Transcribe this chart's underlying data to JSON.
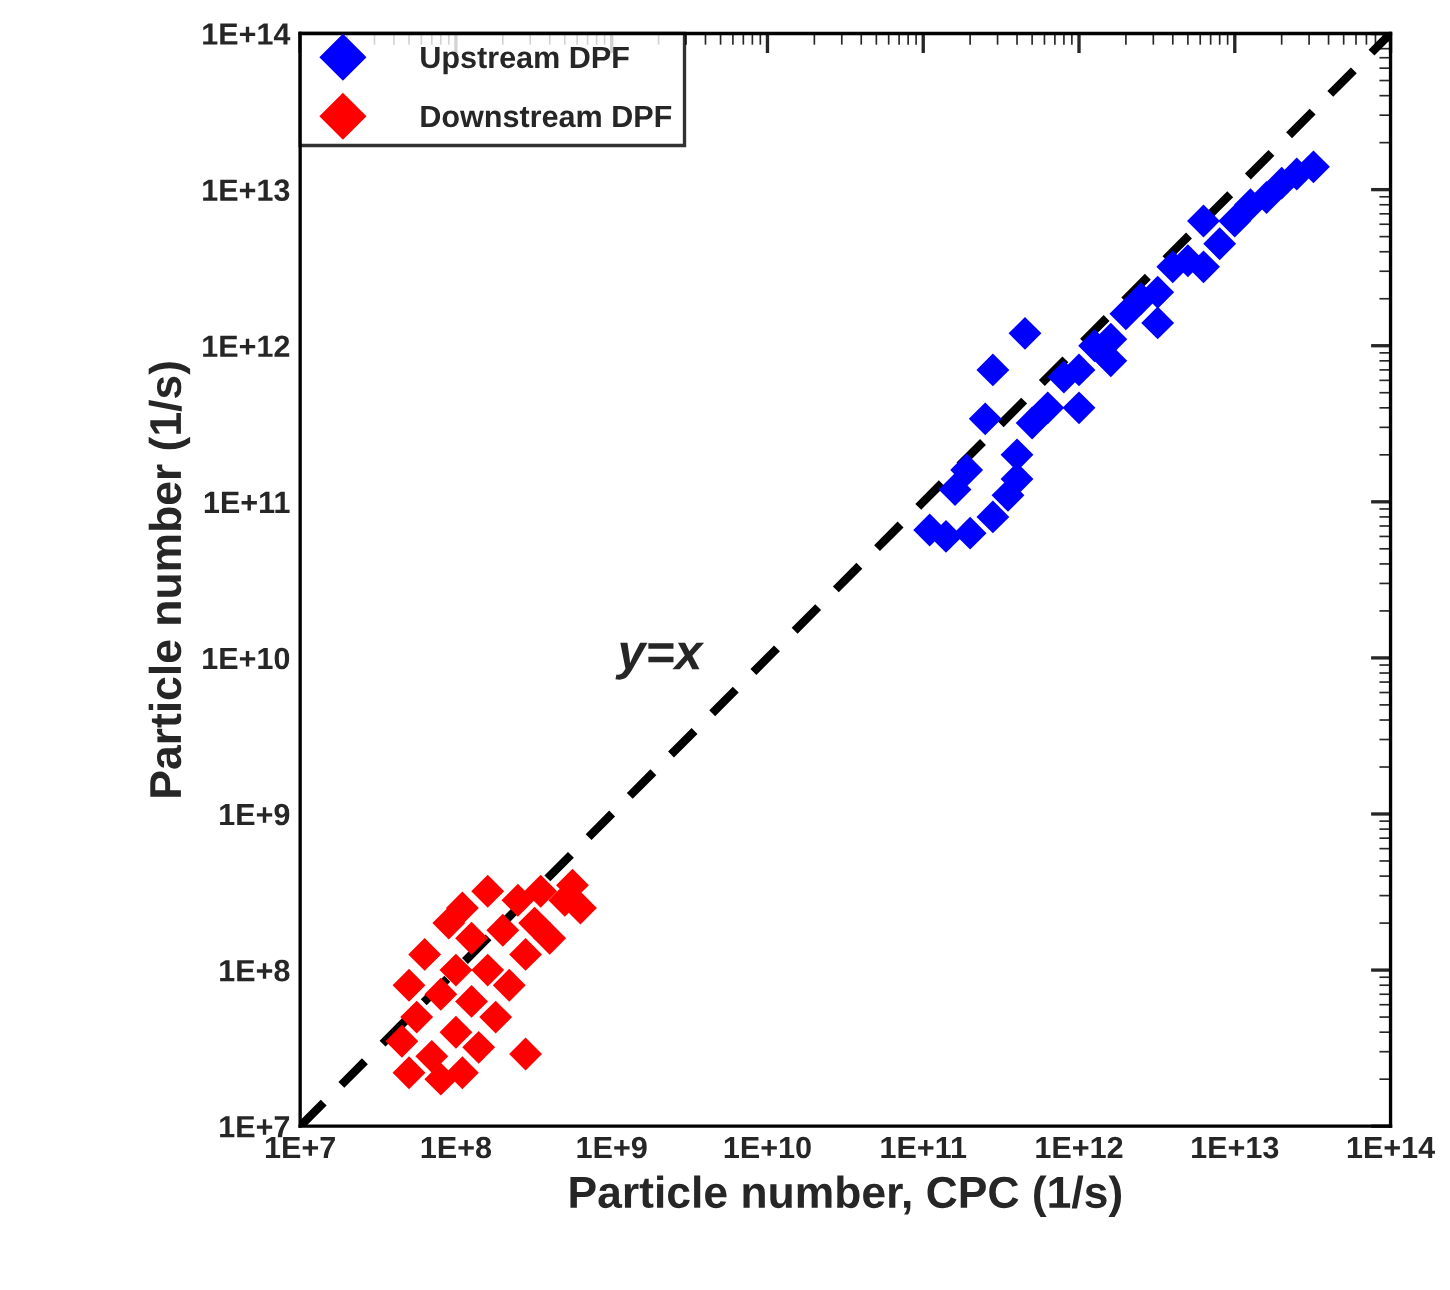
{
  "chart_data": {
    "type": "scatter",
    "xlabel": "Particle number, CPC (1/s)",
    "ylabel": "Particle number (1/s)",
    "log": "xy",
    "legend": "top left",
    "marker": "diamond",
    "xlim": [
      10000000.0,
      100000000000000.0
    ],
    "ylim": [
      10000000.0,
      100000000000000.0
    ],
    "xticks": [
      {
        "value": 10000000.0,
        "label": "1E+7"
      },
      {
        "value": 100000000.0,
        "label": "1E+8"
      },
      {
        "value": 1000000000.0,
        "label": "1E+9"
      },
      {
        "value": 10000000000.0,
        "label": "1E+10"
      },
      {
        "value": 100000000000.0,
        "label": "1E+11"
      },
      {
        "value": 1000000000000.0,
        "label": "1E+12"
      },
      {
        "value": 10000000000000.0,
        "label": "1E+13"
      },
      {
        "value": 100000000000000.0,
        "label": "1E+14"
      }
    ],
    "yticks": [
      {
        "value": 10000000.0,
        "label": "1E+7"
      },
      {
        "value": 100000000.0,
        "label": "1E+8"
      },
      {
        "value": 1000000000.0,
        "label": "1E+9"
      },
      {
        "value": 10000000000.0,
        "label": "1E+10"
      },
      {
        "value": 100000000000.0,
        "label": "1E+11"
      },
      {
        "value": 1000000000000.0,
        "label": "1E+12"
      },
      {
        "value": 10000000000000.0,
        "label": "1E+13"
      },
      {
        "value": 100000000000000.0,
        "label": "1E+14"
      }
    ],
    "annotations": [
      "y=x"
    ],
    "series": [
      {
        "name": "Upstream DPF",
        "color": "#0000ff",
        "x": [
          400000000000.0,
          500000000000.0,
          630000000000.0,
          800000000000.0,
          1000000000000.0,
          1260000000000.0,
          1600000000000.0,
          2000000000000.0,
          2500000000000.0,
          3200000000000.0,
          4000000000000.0,
          5000000000000.0,
          6300000000000.0,
          8000000000000.0,
          10000000000000.0,
          12600000000000.0,
          16000000000000.0,
          20000000000000.0,
          25000000000000.0,
          32000000000000.0,
          1000000000000.0,
          1600000000000.0,
          3200000000000.0,
          6300000000000.0,
          110000000000.0,
          140000000000.0,
          200000000000.0,
          280000000000.0,
          350000000000.0,
          400000000000.0,
          160000000000.0,
          190000000000.0,
          250000000000.0,
          280000000000.0,
          450000000000.0
        ],
        "values": [
          200000000000.0,
          320000000000.0,
          400000000000.0,
          630000000000.0,
          700000000000.0,
          1000000000000.0,
          1100000000000.0,
          1600000000000.0,
          2000000000000.0,
          2200000000000.0,
          3200000000000.0,
          3500000000000.0,
          6300000000000.0,
          4500000000000.0,
          6300000000000.0,
          8000000000000.0,
          8900000000000.0,
          11000000000000.0,
          12600000000000.0,
          14000000000000.0,
          400000000000.0,
          800000000000.0,
          1400000000000.0,
          3200000000000.0,
          66000000000.0,
          60000000000.0,
          63000000000.0,
          80000000000.0,
          110000000000.0,
          140000000000.0,
          120000000000.0,
          160000000000.0,
          340000000000.0,
          700000000000.0,
          1200000000000.0
        ]
      },
      {
        "name": "Downstream DPF",
        "color": "#ff0000",
        "x": [
          45000000.0,
          50000000.0,
          56000000.0,
          63000000.0,
          70000000.0,
          80000000.0,
          90000000.0,
          100000000.0,
          100000000.0,
          110000000.0,
          126000000.0,
          126000000.0,
          140000000.0,
          160000000.0,
          160000000.0,
          180000000.0,
          200000000.0,
          220000000.0,
          250000000.0,
          280000000.0,
          280000000.0,
          320000000.0,
          350000000.0,
          400000000.0,
          500000000.0,
          560000000.0,
          630000000.0,
          50000000.0,
          80000000.0,
          110000000.0
        ],
        "values": [
          35000000.0,
          80000000.0,
          50000000.0,
          126000000.0,
          28000000.0,
          70000000.0,
          200000000.0,
          40000000.0,
          100000000.0,
          250000000.0,
          63000000.0,
          160000000.0,
          32000000.0,
          100000000.0,
          320000000.0,
          50000000.0,
          180000000.0,
          80000000.0,
          280000000.0,
          126000000.0,
          29000000.0,
          200000000.0,
          320000000.0,
          160000000.0,
          280000000.0,
          350000000.0,
          250000000.0,
          22000000.0,
          20000000.0,
          22000000.0
        ]
      },
      {
        "color": "#000000",
        "x": [
          10000000.0,
          100000000000000.0
        ],
        "values": [
          10000000.0,
          100000000000000.0
        ],
        "type": "line",
        "line_style": "dashed",
        "marker": "none"
      }
    ]
  }
}
